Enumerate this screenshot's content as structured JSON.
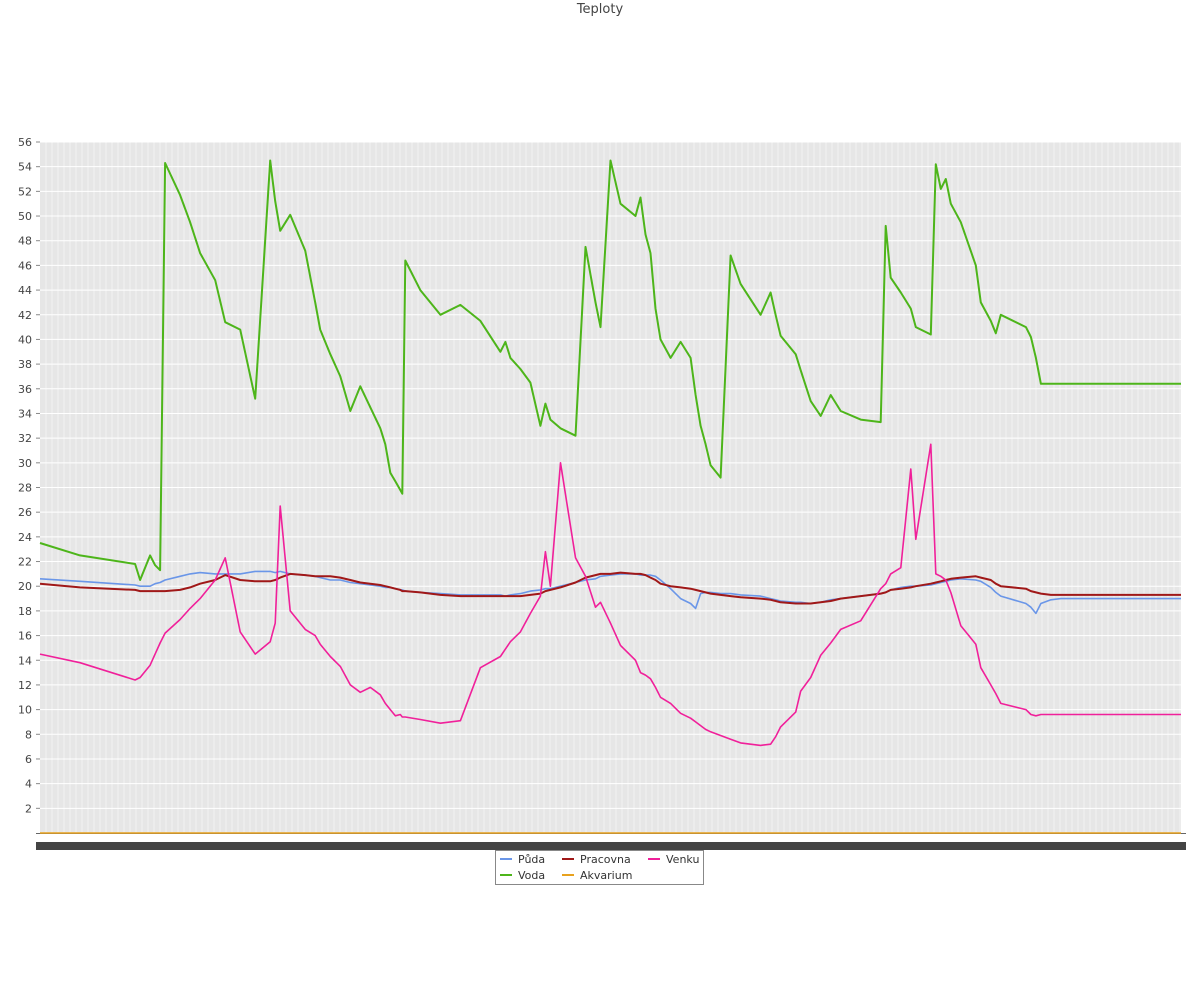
{
  "chart_data": {
    "type": "line",
    "title": "Teploty",
    "ylim": [
      0,
      56
    ],
    "y_ticks": [
      2,
      4,
      6,
      8,
      10,
      12,
      14,
      16,
      18,
      20,
      22,
      24,
      26,
      28,
      30,
      32,
      34,
      36,
      38,
      40,
      42,
      44,
      46,
      48,
      50,
      52,
      54,
      56
    ],
    "x": [
      0,
      40,
      95,
      100,
      110,
      115,
      120,
      125,
      140,
      150,
      160,
      175,
      185,
      200,
      215,
      230,
      235,
      240,
      250,
      265,
      275,
      280,
      290,
      300,
      310,
      320,
      330,
      340,
      345,
      350,
      355,
      360,
      362,
      365,
      380,
      400,
      420,
      440,
      460,
      465,
      470,
      480,
      490,
      500,
      505,
      510,
      520,
      535,
      545,
      555,
      560,
      570,
      580,
      595,
      600,
      605,
      610,
      615,
      620,
      630,
      640,
      650,
      655,
      660,
      665,
      670,
      680,
      690,
      700,
      720,
      730,
      735,
      740,
      755,
      760,
      770,
      780,
      790,
      800,
      820,
      840,
      845,
      850,
      860,
      870,
      875,
      890,
      895,
      900,
      905,
      910,
      920,
      935,
      940,
      950,
      955,
      960,
      985,
      990,
      995,
      1000,
      1010,
      1020,
      1025,
      1030,
      1035,
      1040,
      1045,
      1055,
      1060,
      1070,
      1080,
      1090,
      1100,
      1110,
      1115,
      1120,
      1125,
      1130,
      1140
    ],
    "grid": true,
    "legend_position": "bottom",
    "series": [
      {
        "name": "Půda",
        "color": "#6a96e8",
        "values": [
          20.6,
          20.4,
          20.1,
          20.0,
          20.0,
          20.2,
          20.3,
          20.5,
          20.8,
          21.0,
          21.1,
          21.0,
          21.0,
          21.0,
          21.2,
          21.2,
          21.1,
          21.2,
          21.0,
          20.9,
          20.8,
          20.7,
          20.5,
          20.5,
          20.3,
          20.2,
          20.1,
          20.0,
          19.9,
          19.9,
          19.8,
          19.7,
          19.7,
          19.6,
          19.5,
          19.4,
          19.3,
          19.3,
          19.3,
          19.2,
          19.3,
          19.4,
          19.6,
          19.7,
          19.8,
          19.8,
          20.0,
          20.3,
          20.5,
          20.6,
          20.8,
          20.9,
          21.0,
          21.0,
          20.9,
          20.9,
          20.9,
          20.8,
          20.5,
          19.8,
          19.0,
          18.6,
          18.2,
          19.4,
          19.5,
          19.5,
          19.4,
          19.4,
          19.3,
          19.2,
          19.0,
          18.9,
          18.8,
          18.7,
          18.7,
          18.6,
          18.7,
          18.9,
          19.0,
          19.2,
          19.4,
          19.5,
          19.7,
          19.9,
          20.0,
          20.0,
          20.1,
          20.2,
          20.3,
          20.4,
          20.5,
          20.6,
          20.5,
          20.4,
          19.9,
          19.5,
          19.2,
          18.6,
          18.3,
          17.8,
          18.6,
          18.9,
          19.0,
          19.0,
          19.0,
          19.0,
          19.0,
          19.0,
          19.0,
          19.0,
          19.0,
          19.0,
          19.0,
          19.0,
          19.0,
          19.0,
          19.0,
          19.0,
          19.0,
          19.0
        ],
        "note": ""
      },
      {
        "name": "Pracovna",
        "color": "#a01818",
        "values": [
          20.2,
          19.9,
          19.7,
          19.6,
          19.6,
          19.6,
          19.6,
          19.6,
          19.7,
          19.9,
          20.2,
          20.5,
          20.9,
          20.5,
          20.4,
          20.4,
          20.5,
          20.7,
          21.0,
          20.9,
          20.8,
          20.8,
          20.8,
          20.7,
          20.5,
          20.3,
          20.2,
          20.1,
          20.0,
          19.9,
          19.8,
          19.7,
          19.6,
          19.6,
          19.5,
          19.3,
          19.2,
          19.2,
          19.2,
          19.2,
          19.2,
          19.2,
          19.3,
          19.4,
          19.6,
          19.7,
          19.9,
          20.3,
          20.7,
          20.9,
          21.0,
          21.0,
          21.1,
          21.0,
          21.0,
          20.9,
          20.7,
          20.5,
          20.2,
          20.0,
          19.9,
          19.8,
          19.7,
          19.6,
          19.5,
          19.4,
          19.3,
          19.2,
          19.1,
          19.0,
          18.9,
          18.8,
          18.7,
          18.6,
          18.6,
          18.6,
          18.7,
          18.8,
          19.0,
          19.2,
          19.4,
          19.5,
          19.7,
          19.8,
          19.9,
          20.0,
          20.2,
          20.3,
          20.4,
          20.5,
          20.6,
          20.7,
          20.8,
          20.7,
          20.5,
          20.2,
          20.0,
          19.8,
          19.6,
          19.5,
          19.4,
          19.3,
          19.3,
          19.3,
          19.3,
          19.3,
          19.3,
          19.3,
          19.3,
          19.3,
          19.3,
          19.3,
          19.3,
          19.3,
          19.3,
          19.3,
          19.3,
          19.3,
          19.3,
          19.3
        ]
      },
      {
        "name": "Venku",
        "color": "#f0209a",
        "values": [
          14.5,
          13.8,
          12.4,
          12.6,
          13.6,
          14.5,
          15.4,
          16.2,
          17.3,
          18.2,
          19.0,
          20.5,
          22.3,
          16.3,
          14.5,
          15.5,
          17.0,
          26.5,
          18.0,
          16.5,
          16.0,
          15.3,
          14.3,
          13.5,
          12.0,
          11.4,
          11.8,
          11.2,
          10.5,
          10.0,
          9.5,
          9.6,
          9.4,
          9.4,
          9.2,
          8.9,
          9.1,
          13.4,
          14.3,
          14.9,
          15.5,
          16.3,
          17.8,
          19.2,
          22.8,
          20.0,
          30.0,
          22.3,
          20.8,
          18.3,
          18.7,
          17.0,
          15.2,
          14.0,
          13.0,
          12.8,
          12.5,
          11.8,
          11.0,
          10.5,
          9.7,
          9.3,
          9.0,
          8.7,
          8.4,
          8.2,
          7.9,
          7.6,
          7.3,
          7.1,
          7.2,
          7.8,
          8.6,
          9.8,
          11.5,
          12.6,
          14.4,
          15.4,
          16.5,
          17.2,
          19.8,
          20.2,
          21.0,
          21.5,
          29.5,
          23.8,
          31.5,
          21.0,
          20.8,
          20.5,
          19.5,
          16.8,
          15.3,
          13.4,
          12.0,
          11.3,
          10.5,
          10.0,
          9.6,
          9.5,
          9.6,
          9.6,
          9.6,
          9.6,
          9.6,
          9.6,
          9.6,
          9.6,
          9.6,
          9.6,
          9.6,
          9.6,
          9.6,
          9.6,
          9.6,
          9.6,
          9.6,
          9.6,
          9.6,
          9.6
        ],
        "note": ""
      },
      {
        "name": "Voda",
        "color": "#4db51a",
        "values": [
          23.5,
          22.5,
          21.8,
          20.5,
          22.5,
          21.7,
          21.3,
          54.3,
          51.7,
          49.5,
          47.0,
          44.8,
          41.4,
          40.8,
          35.2,
          54.5,
          51.2,
          48.8,
          50.1,
          47.2,
          43.0,
          40.8,
          38.8,
          37.0,
          34.2,
          36.2,
          34.5,
          32.8,
          31.5,
          29.2,
          28.5,
          27.8,
          27.5,
          46.4,
          44.0,
          42.0,
          42.8,
          41.5,
          39.0,
          39.8,
          38.5,
          37.6,
          36.5,
          33.0,
          34.8,
          33.5,
          32.8,
          32.2,
          47.5,
          43.0,
          41.0,
          54.5,
          51.0,
          50.0,
          51.5,
          48.5,
          47.0,
          42.5,
          40.0,
          38.5,
          39.8,
          38.5,
          35.5,
          33.0,
          31.5,
          29.8,
          28.8,
          46.8,
          44.5,
          42.0,
          43.8,
          42.0,
          40.3,
          38.8,
          37.5,
          35.0,
          33.8,
          35.5,
          34.2,
          33.5,
          33.3,
          49.2,
          45.0,
          43.8,
          42.5,
          41.0,
          40.4,
          54.2,
          52.2,
          53.0,
          51.0,
          49.5,
          46.0,
          43.0,
          41.5,
          40.5,
          42.0,
          41.0,
          40.2,
          38.5,
          36.4,
          36.4,
          36.4,
          36.4,
          36.4,
          36.4,
          36.4,
          36.4,
          36.4,
          36.4,
          36.4,
          36.4,
          36.4,
          36.4,
          36.4,
          36.4,
          36.4,
          36.4,
          36.4,
          36.4
        ]
      },
      {
        "name": "Akvarium",
        "color": "#e8a21e",
        "values": [
          0,
          0,
          0,
          0,
          0,
          0,
          0,
          0,
          0,
          0,
          0,
          0,
          0,
          0,
          0,
          0,
          0,
          0,
          0,
          0,
          0,
          0,
          0,
          0,
          0,
          0,
          0,
          0,
          0,
          0,
          0,
          0,
          0,
          0,
          0,
          0,
          0,
          0,
          0,
          0,
          0,
          0,
          0,
          0,
          0,
          0,
          0,
          0,
          0,
          0,
          0,
          0,
          0,
          0,
          0,
          0,
          0,
          0,
          0,
          0,
          0,
          0,
          0,
          0,
          0,
          0,
          0,
          0,
          0,
          0,
          0,
          0,
          0,
          0,
          0,
          0,
          0,
          0,
          0,
          0,
          0,
          0,
          0,
          0,
          0,
          0,
          0,
          0,
          0,
          0,
          0,
          0,
          0,
          0,
          0,
          0,
          0,
          0,
          0,
          0,
          0,
          0,
          0,
          0,
          0,
          0,
          0,
          0,
          0,
          0,
          0,
          0,
          0,
          0,
          0,
          0,
          0,
          0,
          0,
          0
        ]
      }
    ]
  },
  "legend": {
    "items": [
      {
        "label": "Půda",
        "color": "#6a96e8"
      },
      {
        "label": "Pracovna",
        "color": "#a01818"
      },
      {
        "label": "Venku",
        "color": "#f0209a"
      },
      {
        "label": "Voda",
        "color": "#4db51a"
      },
      {
        "label": "Akvarium",
        "color": "#e8a21e"
      }
    ]
  }
}
